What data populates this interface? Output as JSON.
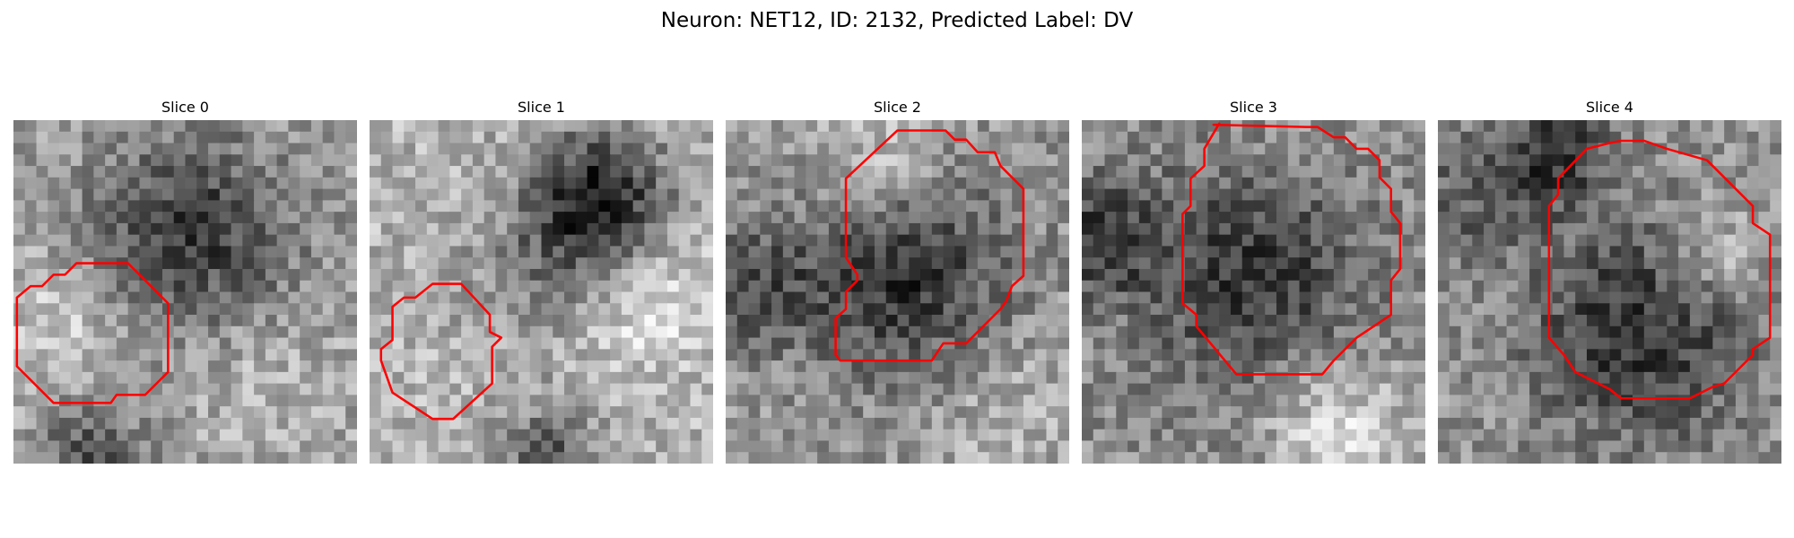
{
  "figure": {
    "title": "Neuron: NET12, ID: 2132, Predicted Label: DV"
  },
  "contour_color": "#ff0000",
  "panels": [
    {
      "title": "Slice 0"
    },
    {
      "title": "Slice 1"
    },
    {
      "title": "Slice 2"
    },
    {
      "title": "Slice 3"
    },
    {
      "title": "Slice 4"
    }
  ]
}
